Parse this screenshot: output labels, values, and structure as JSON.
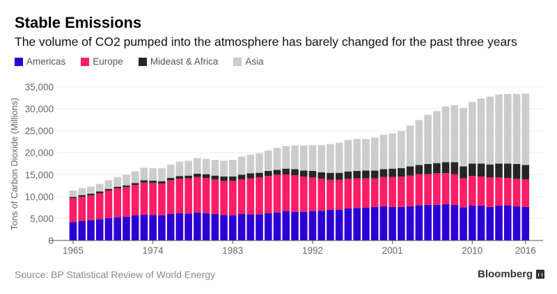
{
  "chart_data": {
    "type": "bar",
    "stacked": true,
    "title": "Stable Emissions",
    "subtitle": "The volume of CO2 pumped into the atmosphere has barely changed for the past three years",
    "ylabel": "Tons of Carbon Dioxide (Millions)",
    "xlabel": "",
    "ylim": [
      0,
      35000
    ],
    "yticks": [
      "0",
      "5,000",
      "10,000",
      "15,000",
      "20,000",
      "25,000",
      "30,000",
      "35,000"
    ],
    "xticks": [
      "1965",
      "1974",
      "1983",
      "1992",
      "2001",
      "2010",
      "2016"
    ],
    "grid": true,
    "legend_position": "top-left",
    "categories": [
      1965,
      1966,
      1967,
      1968,
      1969,
      1970,
      1971,
      1972,
      1973,
      1974,
      1975,
      1976,
      1977,
      1978,
      1979,
      1980,
      1981,
      1982,
      1983,
      1984,
      1985,
      1986,
      1987,
      1988,
      1989,
      1990,
      1991,
      1992,
      1993,
      1994,
      1995,
      1996,
      1997,
      1998,
      1999,
      2000,
      2001,
      2002,
      2003,
      2004,
      2005,
      2006,
      2007,
      2008,
      2009,
      2010,
      2011,
      2012,
      2013,
      2014,
      2015,
      2016
    ],
    "series": [
      {
        "name": "Americas",
        "color": "#2a00d4",
        "values": [
          4220,
          4430,
          4650,
          4860,
          5070,
          5280,
          5390,
          5700,
          5910,
          5810,
          5700,
          6020,
          6230,
          6130,
          6340,
          6230,
          6020,
          5810,
          5700,
          6020,
          5970,
          5970,
          6230,
          6390,
          6650,
          6540,
          6540,
          6650,
          6760,
          6970,
          6970,
          7290,
          7390,
          7500,
          7600,
          7810,
          7650,
          7650,
          7810,
          8030,
          8130,
          8130,
          8240,
          8130,
          7550,
          7920,
          7920,
          7650,
          7920,
          8030,
          7810,
          7650
        ]
      },
      {
        "name": "Europe",
        "color": "#fe1d66",
        "values": [
          5390,
          5500,
          5600,
          5910,
          6330,
          6550,
          6760,
          6970,
          7290,
          7290,
          7290,
          7710,
          7810,
          8020,
          8120,
          8020,
          7920,
          7810,
          7920,
          7920,
          8180,
          8440,
          8450,
          8550,
          8400,
          8350,
          8030,
          7710,
          7340,
          6860,
          6860,
          6750,
          6760,
          6650,
          6550,
          6650,
          6810,
          6920,
          6970,
          7070,
          6970,
          7180,
          7120,
          6970,
          6600,
          6760,
          6650,
          6710,
          6490,
          6220,
          6230,
          6290
        ]
      },
      {
        "name": "Mideast & Africa",
        "color": "#262626",
        "values": [
          320,
          420,
          420,
          420,
          320,
          420,
          410,
          430,
          520,
          520,
          520,
          520,
          640,
          630,
          740,
          850,
          840,
          950,
          950,
          1050,
          1160,
          1010,
          1160,
          1160,
          1310,
          1370,
          1370,
          1480,
          1420,
          1580,
          1580,
          1690,
          1690,
          1790,
          1790,
          1800,
          1900,
          1900,
          2110,
          2110,
          2320,
          2320,
          2480,
          2740,
          2740,
          2850,
          2960,
          2960,
          3120,
          3280,
          3380,
          3270
        ]
      },
      {
        "name": "Asia",
        "color": "#cccccc",
        "values": [
          1470,
          1580,
          1580,
          1690,
          2000,
          2210,
          2430,
          2630,
          2860,
          2850,
          2960,
          3060,
          3270,
          3380,
          3600,
          3480,
          3590,
          3590,
          3800,
          4120,
          4220,
          4430,
          4640,
          5010,
          5180,
          5390,
          5710,
          5910,
          6230,
          6550,
          6870,
          7180,
          7280,
          7180,
          7500,
          7810,
          8030,
          8450,
          9290,
          10240,
          11190,
          11830,
          12680,
          13000,
          13310,
          14040,
          14830,
          15470,
          15730,
          15840,
          15950,
          16260
        ]
      }
    ]
  },
  "footer": {
    "source": "Source: BP Statistical Review of World Energy",
    "brand": "Bloomberg"
  }
}
